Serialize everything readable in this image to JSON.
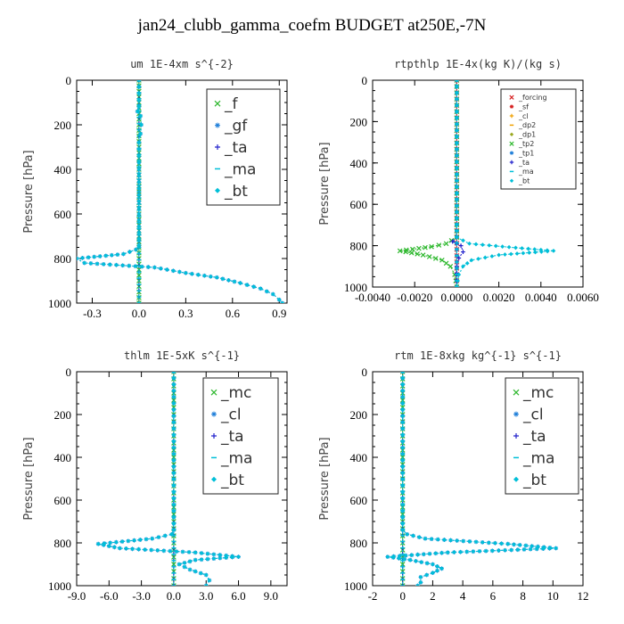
{
  "title": "jan24_clubb_gamma_coefm  BUDGET at250E,-7N",
  "colors": {
    "green": "#2eb82e",
    "blue": "#1f7fd9",
    "navy": "#2222cc",
    "cyan": "#00bfd8",
    "red": "#d62020",
    "orange": "#f0a000",
    "olive": "#9aa820"
  },
  "chart_data": [
    {
      "type": "line",
      "title": "um  1E-4xm s^{-2}",
      "ylabel": "Pressure [hPa]",
      "xlim": [
        -0.4,
        0.95
      ],
      "ylim": [
        1000,
        0
      ],
      "xticks": [
        -0.3,
        0,
        0.3,
        0.6,
        0.9
      ],
      "xtick_labels": [
        "-0.3",
        "0.0",
        "0.3",
        "0.6",
        "0.9"
      ],
      "yticks": [
        0,
        200,
        400,
        600,
        800,
        1000
      ],
      "legend_position": "top-right",
      "legend_font": 17,
      "legend_size": "large",
      "series": [
        {
          "name": "_f",
          "color_key": "green",
          "values": [
            [
              0,
              0
            ],
            [
              0,
              100
            ],
            [
              0,
              200
            ],
            [
              0,
              300
            ],
            [
              0,
              400
            ],
            [
              0,
              500
            ],
            [
              0,
              600
            ],
            [
              0,
              700
            ],
            [
              0,
              800
            ],
            [
              0,
              900
            ],
            [
              0,
              1000
            ]
          ]
        },
        {
          "name": "_gf",
          "color_key": "blue",
          "values": [
            [
              0,
              0
            ],
            [
              0,
              120
            ],
            [
              -0.01,
              140
            ],
            [
              0.01,
              160
            ],
            [
              0.015,
              200
            ],
            [
              0.01,
              240
            ],
            [
              0,
              280
            ],
            [
              0,
              400
            ],
            [
              0,
              600
            ],
            [
              0,
              740
            ],
            [
              -0.02,
              760
            ],
            [
              -0.1,
              780
            ],
            [
              -0.4,
              800
            ],
            [
              -0.35,
              820
            ],
            [
              0.1,
              840
            ],
            [
              0.3,
              865
            ],
            [
              0.5,
              885
            ],
            [
              0.65,
              910
            ],
            [
              0.78,
              935
            ],
            [
              0.86,
              960
            ],
            [
              0.9,
              985
            ],
            [
              0.92,
              1000
            ]
          ]
        },
        {
          "name": "_ta",
          "color_key": "navy",
          "values": [
            [
              0,
              0
            ],
            [
              0,
              1000
            ]
          ]
        },
        {
          "name": "_ma",
          "color_key": "cyan",
          "values": [
            [
              0,
              0
            ],
            [
              0,
              1000
            ]
          ]
        },
        {
          "name": "_bt",
          "color_key": "cyan",
          "values": [
            [
              0,
              0
            ],
            [
              0,
              120
            ],
            [
              -0.01,
              140
            ],
            [
              0.01,
              160
            ],
            [
              0.015,
              200
            ],
            [
              0.01,
              240
            ],
            [
              0,
              280
            ],
            [
              0,
              400
            ],
            [
              0,
              600
            ],
            [
              0,
              740
            ],
            [
              -0.02,
              760
            ],
            [
              -0.1,
              780
            ],
            [
              -0.4,
              800
            ],
            [
              -0.35,
              820
            ],
            [
              0.1,
              840
            ],
            [
              0.3,
              865
            ],
            [
              0.5,
              885
            ],
            [
              0.65,
              910
            ],
            [
              0.78,
              935
            ],
            [
              0.86,
              960
            ],
            [
              0.9,
              985
            ],
            [
              0.92,
              1000
            ]
          ]
        }
      ]
    },
    {
      "type": "line",
      "title": "rtpthlp  1E-4x(kg K)/(kg s)",
      "ylabel": "Pressure [hPa]",
      "xlim": [
        -0.004,
        0.006
      ],
      "ylim": [
        1000,
        0
      ],
      "xticks": [
        -0.004,
        -0.002,
        0,
        0.002,
        0.004,
        0.006
      ],
      "xtick_labels": [
        "-0.0040",
        "-0.0020",
        "0.0000",
        "0.0020",
        "0.0040",
        "0.0060"
      ],
      "yticks": [
        0,
        200,
        400,
        600,
        800,
        1000
      ],
      "legend_position": "top-right",
      "legend_font": 8,
      "legend_size": "small",
      "series": [
        {
          "name": "_forcing",
          "color_key": "red",
          "values": [
            [
              0,
              0
            ],
            [
              0,
              1000
            ]
          ]
        },
        {
          "name": "_sf",
          "color_key": "red",
          "values": [
            [
              0,
              0
            ],
            [
              0,
              1000
            ]
          ]
        },
        {
          "name": "_cl",
          "color_key": "orange",
          "values": [
            [
              0,
              0
            ],
            [
              0,
              1000
            ]
          ]
        },
        {
          "name": "_dp2",
          "color_key": "orange",
          "values": [
            [
              0,
              0
            ],
            [
              0,
              1000
            ]
          ]
        },
        {
          "name": "_dp1",
          "color_key": "olive",
          "values": [
            [
              0,
              0
            ],
            [
              0,
              1000
            ]
          ]
        },
        {
          "name": "_tp2",
          "color_key": "green",
          "values": [
            [
              0,
              0
            ],
            [
              0,
              760
            ],
            [
              -0.0005,
              790
            ],
            [
              -0.0012,
              805
            ],
            [
              -0.0027,
              825
            ],
            [
              -0.0016,
              845
            ],
            [
              -0.0007,
              870
            ],
            [
              -0.0003,
              900
            ],
            [
              -0.0001,
              940
            ],
            [
              0,
              1000
            ]
          ]
        },
        {
          "name": "_tp1",
          "color_key": "blue",
          "values": [
            [
              0,
              0
            ],
            [
              0,
              1000
            ]
          ]
        },
        {
          "name": "_ta",
          "color_key": "navy",
          "values": [
            [
              0,
              0
            ],
            [
              0,
              760
            ],
            [
              -0.0002,
              780
            ],
            [
              0.0002,
              800
            ],
            [
              0.0003,
              830
            ],
            [
              0.0001,
              860
            ],
            [
              0,
              900
            ],
            [
              0,
              1000
            ]
          ]
        },
        {
          "name": "_ma",
          "color_key": "cyan",
          "values": [
            [
              0,
              0
            ],
            [
              0,
              1000
            ]
          ]
        },
        {
          "name": "_bt",
          "color_key": "cyan",
          "values": [
            [
              0,
              0
            ],
            [
              0,
              760
            ],
            [
              0.0006,
              790
            ],
            [
              0.0028,
              810
            ],
            [
              0.0046,
              825
            ],
            [
              0.002,
              845
            ],
            [
              0.0007,
              870
            ],
            [
              0.0003,
              900
            ],
            [
              0.0001,
              940
            ],
            [
              0,
              1000
            ]
          ]
        }
      ]
    },
    {
      "type": "line",
      "title": "thlm  1E-5xK s^{-1}",
      "ylabel": "Pressure [hPa]",
      "xlim": [
        -9,
        10.5
      ],
      "ylim": [
        1000,
        0
      ],
      "xticks": [
        -9,
        -6,
        -3,
        0,
        3,
        6,
        9
      ],
      "xtick_labels": [
        "-9.0",
        "-6.0",
        "-3.0",
        "0.0",
        "3.0",
        "6.0",
        "9.0"
      ],
      "yticks": [
        0,
        200,
        400,
        600,
        800,
        1000
      ],
      "legend_position": "top-right",
      "legend_font": 17,
      "legend_size": "large",
      "series": [
        {
          "name": "_mc",
          "color_key": "green",
          "values": [
            [
              0,
              0
            ],
            [
              0,
              100
            ],
            [
              0,
              200
            ],
            [
              0,
              300
            ],
            [
              0,
              400
            ],
            [
              0,
              500
            ],
            [
              0,
              600
            ],
            [
              0,
              700
            ],
            [
              0,
              800
            ],
            [
              0,
              900
            ],
            [
              0,
              1000
            ]
          ]
        },
        {
          "name": "_cl",
          "color_key": "blue",
          "values": [
            [
              0,
              0
            ],
            [
              0,
              740
            ],
            [
              -0.2,
              760
            ],
            [
              -2,
              780
            ],
            [
              -7,
              805
            ],
            [
              -5,
              825
            ],
            [
              2,
              845
            ],
            [
              6,
              865
            ],
            [
              2,
              880
            ],
            [
              0.5,
              900
            ],
            [
              1.5,
              925
            ],
            [
              3,
              950
            ],
            [
              3.3,
              975
            ],
            [
              3,
              1000
            ]
          ]
        },
        {
          "name": "_ta",
          "color_key": "navy",
          "values": [
            [
              0,
              0
            ],
            [
              0,
              1000
            ]
          ]
        },
        {
          "name": "_ma",
          "color_key": "cyan",
          "values": [
            [
              0,
              0
            ],
            [
              0,
              1000
            ]
          ]
        },
        {
          "name": "_bt",
          "color_key": "cyan",
          "values": [
            [
              0,
              0
            ],
            [
              0,
              740
            ],
            [
              -0.2,
              760
            ],
            [
              -2,
              780
            ],
            [
              -7,
              805
            ],
            [
              -5,
              825
            ],
            [
              2,
              845
            ],
            [
              6,
              865
            ],
            [
              2,
              880
            ],
            [
              0.5,
              900
            ],
            [
              1.5,
              925
            ],
            [
              3,
              950
            ],
            [
              3.3,
              975
            ],
            [
              3,
              1000
            ]
          ]
        }
      ]
    },
    {
      "type": "line",
      "title": "rtm  1E-8xkg kg^{-1} s^{-1}",
      "ylabel": "Pressure [hPa]",
      "xlim": [
        -2,
        12
      ],
      "ylim": [
        1000,
        0
      ],
      "xticks": [
        -2,
        0,
        2,
        4,
        6,
        8,
        10,
        12
      ],
      "xtick_labels": [
        "-2",
        "0",
        "2",
        "4",
        "6",
        "8",
        "10",
        "12"
      ],
      "yticks": [
        0,
        200,
        400,
        600,
        800,
        1000
      ],
      "legend_position": "top-right",
      "legend_font": 17,
      "legend_size": "large",
      "series": [
        {
          "name": "_mc",
          "color_key": "green",
          "values": [
            [
              0,
              0
            ],
            [
              0,
              100
            ],
            [
              0,
              200
            ],
            [
              0,
              300
            ],
            [
              0,
              400
            ],
            [
              0,
              500
            ],
            [
              0,
              600
            ],
            [
              0,
              700
            ],
            [
              0,
              800
            ],
            [
              0,
              900
            ],
            [
              0,
              1000
            ]
          ]
        },
        {
          "name": "_cl",
          "color_key": "blue",
          "values": [
            [
              0,
              0
            ],
            [
              0,
              740
            ],
            [
              0.3,
              760
            ],
            [
              1.5,
              780
            ],
            [
              7,
              805
            ],
            [
              10.2,
              825
            ],
            [
              3,
              845
            ],
            [
              -1,
              865
            ],
            [
              0.5,
              880
            ],
            [
              2,
              900
            ],
            [
              2.6,
              920
            ],
            [
              2,
              940
            ],
            [
              1.2,
              960
            ],
            [
              1.2,
              985
            ],
            [
              1,
              1000
            ]
          ]
        },
        {
          "name": "_ta",
          "color_key": "navy",
          "values": [
            [
              0,
              0
            ],
            [
              0,
              1000
            ]
          ]
        },
        {
          "name": "_ma",
          "color_key": "cyan",
          "values": [
            [
              0,
              0
            ],
            [
              0,
              1000
            ]
          ]
        },
        {
          "name": "_bt",
          "color_key": "cyan",
          "values": [
            [
              0,
              0
            ],
            [
              0,
              740
            ],
            [
              0.3,
              760
            ],
            [
              1.5,
              780
            ],
            [
              7,
              805
            ],
            [
              10.2,
              825
            ],
            [
              3,
              845
            ],
            [
              -1,
              865
            ],
            [
              0.5,
              880
            ],
            [
              2,
              900
            ],
            [
              2.6,
              920
            ],
            [
              2,
              940
            ],
            [
              1.2,
              960
            ],
            [
              1.2,
              985
            ],
            [
              1,
              1000
            ]
          ]
        }
      ]
    }
  ]
}
